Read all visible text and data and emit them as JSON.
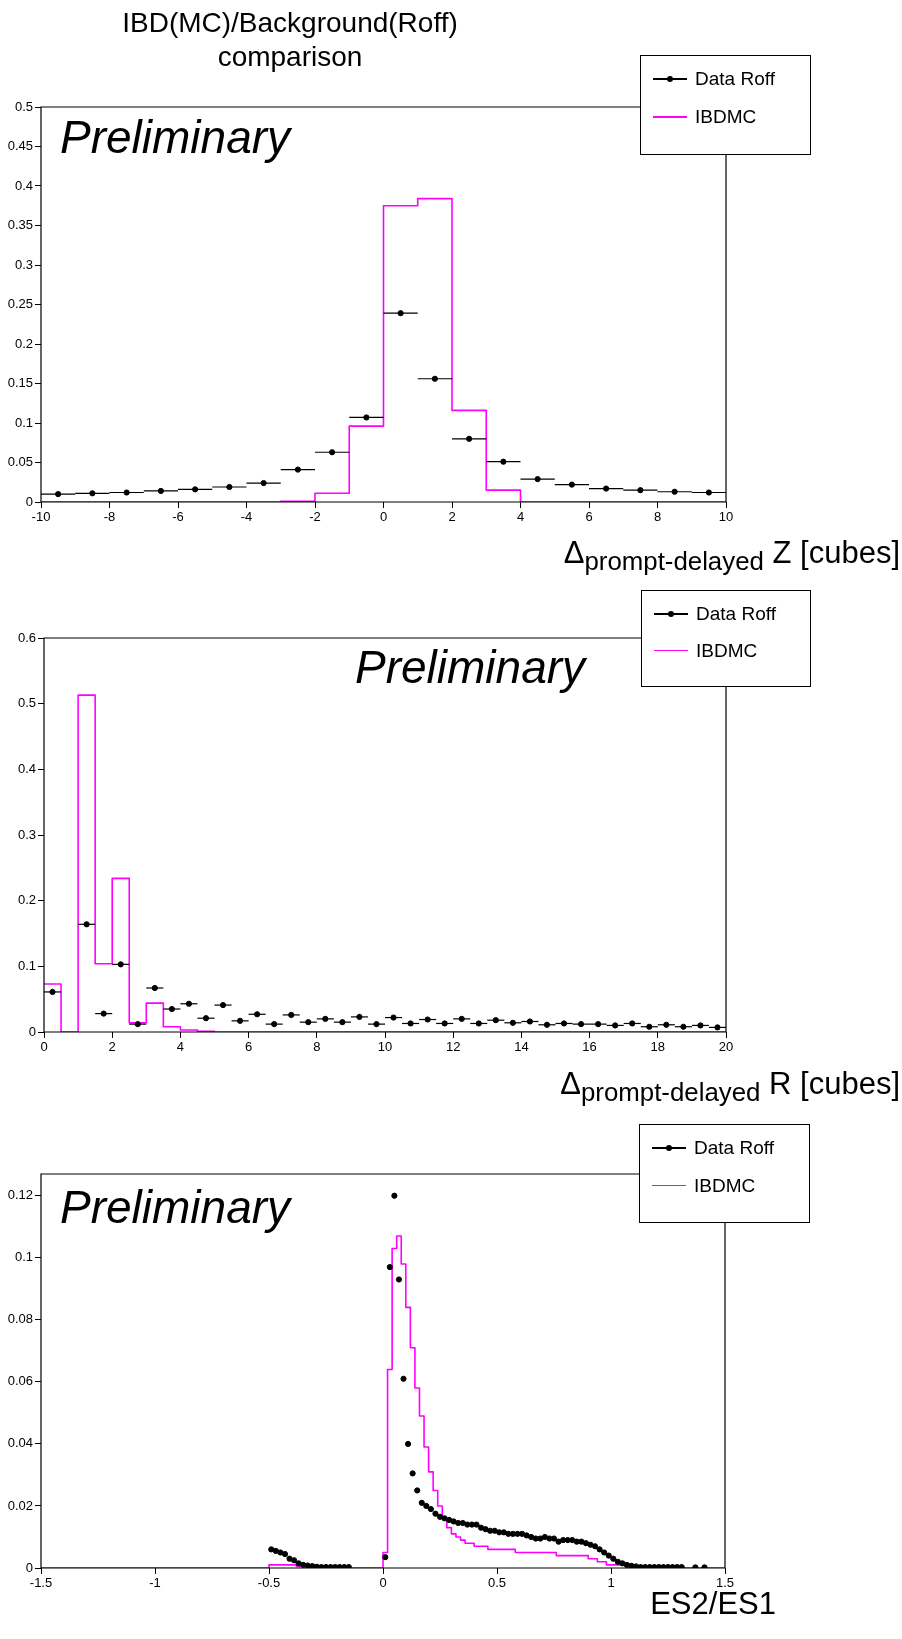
{
  "chart_data": [
    {
      "type": "histogram",
      "title": "IBD(MC)/Background(Roff) comparison",
      "xlabel": "Δ$_{prompt-delayed}$ Z [cubes]",
      "annotations": [
        "Preliminary"
      ],
      "legend": "top right",
      "xlim": [
        -10,
        10
      ],
      "ylim": [
        0,
        0.5
      ],
      "xticks": [
        -10,
        -8,
        -6,
        -4,
        -2,
        0,
        2,
        4,
        6,
        8,
        10
      ],
      "yticks": [
        0,
        0.05,
        0.1,
        0.15,
        0.2,
        0.25,
        0.3,
        0.35,
        0.4,
        0.45,
        0.5
      ],
      "series": [
        {
          "name": "IBDMC",
          "type": "histogram",
          "color": "#ff00ff",
          "bins": [
            -10,
            -9,
            -8,
            -7,
            -6,
            -5,
            -4,
            -3,
            -2,
            -1,
            0,
            1,
            2,
            3,
            4,
            5,
            6,
            7,
            8,
            9,
            10
          ],
          "values": [
            0,
            0,
            0,
            0,
            0,
            0,
            0,
            0.001,
            0.011,
            0.096,
            0.375,
            0.384,
            0.116,
            0.015,
            0,
            0,
            0,
            0,
            0,
            0
          ]
        },
        {
          "name": "Data Roff",
          "type": "scatter",
          "marker": "circle",
          "color": "#000000",
          "x": [
            -9.5,
            -8.5,
            -7.5,
            -6.5,
            -5.5,
            -4.5,
            -3.5,
            -2.5,
            -1.5,
            -0.5,
            0.5,
            1.5,
            2.5,
            3.5,
            4.5,
            5.5,
            6.5,
            7.5,
            8.5,
            9.5
          ],
          "values": [
            0.01,
            0.011,
            0.012,
            0.014,
            0.016,
            0.019,
            0.024,
            0.041,
            0.063,
            0.107,
            0.239,
            0.156,
            0.08,
            0.051,
            0.029,
            0.022,
            0.017,
            0.015,
            0.013,
            0.012
          ],
          "xerrors": [
            0.5,
            0.5,
            0.5,
            0.5,
            0.5,
            0.5,
            0.5,
            0.5,
            0.5,
            0.5,
            0.5,
            0.5,
            0.5,
            0.5,
            0.5,
            0.5,
            0.5,
            0.5,
            0.5,
            0.5
          ]
        }
      ]
    },
    {
      "type": "histogram",
      "xlabel": "Δ$_{prompt-delayed}$ R [cubes]",
      "annotations": [
        "Preliminary"
      ],
      "legend": "top right",
      "xlim": [
        0,
        20
      ],
      "ylim": [
        0,
        0.6
      ],
      "xticks": [
        0,
        2,
        4,
        6,
        8,
        10,
        12,
        14,
        16,
        18,
        20
      ],
      "yticks": [
        0,
        0.1,
        0.2,
        0.3,
        0.4,
        0.5,
        0.6
      ],
      "series": [
        {
          "name": "IBDMC",
          "type": "histogram",
          "color": "#ff00ff",
          "bins": [
            0,
            0.5,
            1,
            1.5,
            2,
            2.5,
            3,
            3.5,
            4,
            4.5,
            5,
            5.5,
            6,
            6.5,
            7,
            7.5,
            8,
            8.5,
            9,
            9.5,
            10,
            10.5,
            11,
            11.5,
            12,
            12.5,
            13,
            13.5,
            14,
            14.5,
            15,
            15.5,
            16,
            16.5,
            17,
            17.5,
            18,
            18.5,
            19,
            19.5,
            20
          ],
          "values": [
            0.073,
            0,
            0.513,
            0.104,
            0.234,
            0.014,
            0.044,
            0.008,
            0.003,
            0.001,
            0,
            0,
            0,
            0,
            0,
            0,
            0,
            0,
            0,
            0,
            0,
            0,
            0,
            0,
            0,
            0,
            0,
            0,
            0,
            0,
            0,
            0,
            0,
            0,
            0,
            0,
            0,
            0,
            0,
            0
          ]
        },
        {
          "name": "Data Roff",
          "type": "scatter",
          "marker": "circle",
          "color": "#000000",
          "x": [
            0.25,
            0.75,
            1.25,
            1.75,
            2.25,
            2.75,
            3.25,
            3.75,
            4.25,
            4.75,
            5.25,
            5.75,
            6.25,
            6.75,
            7.25,
            7.75,
            8.25,
            8.75,
            9.25,
            9.75,
            10.25,
            10.75,
            11.25,
            11.75,
            12.25,
            12.75,
            13.25,
            13.75,
            14.25,
            14.75,
            15.25,
            15.75,
            16.25,
            16.75,
            17.25,
            17.75,
            18.25,
            18.75,
            19.25,
            19.75
          ],
          "values": [
            0.061,
            null,
            0.164,
            0.028,
            0.103,
            0.012,
            0.067,
            0.035,
            0.043,
            0.021,
            0.041,
            0.017,
            0.027,
            0.012,
            0.026,
            0.015,
            0.02,
            0.015,
            0.023,
            0.012,
            0.022,
            0.013,
            0.019,
            0.013,
            0.02,
            0.013,
            0.018,
            0.014,
            0.016,
            0.011,
            0.013,
            0.012,
            0.012,
            0.01,
            0.013,
            0.008,
            0.011,
            0.008,
            0.01,
            0.007
          ],
          "xerrors": [
            0.25,
            null,
            0.25,
            0.25,
            0.25,
            0.25,
            0.25,
            0.25,
            0.25,
            0.25,
            0.25,
            0.25,
            0.25,
            0.25,
            0.25,
            0.25,
            0.25,
            0.25,
            0.25,
            0.25,
            0.25,
            0.25,
            0.25,
            0.25,
            0.25,
            0.25,
            0.25,
            0.25,
            0.25,
            0.25,
            0.25,
            0.25,
            0.25,
            0.25,
            0.25,
            0.25,
            0.25,
            0.25,
            0.25,
            0.25
          ]
        }
      ]
    },
    {
      "type": "histogram",
      "xlabel": "ES2/ES1",
      "annotations": [
        "Preliminary"
      ],
      "legend": "top right",
      "xlim": [
        -1.5,
        1.5
      ],
      "ylim": [
        0,
        0.127
      ],
      "xticks": [
        -1.5,
        -1,
        -0.5,
        0,
        0.5,
        1,
        1.5
      ],
      "yticks": [
        0,
        0.02,
        0.04,
        0.06,
        0.08,
        0.1,
        0.12
      ],
      "series": [
        {
          "name": "IBDMC",
          "type": "histogram",
          "color": "#ff00ff",
          "bins": [
            -1.5,
            -0.5,
            -0.48,
            -0.46,
            -0.44,
            -0.42,
            -0.4,
            -0.38,
            -0.36,
            -0.34,
            -0.32,
            -0.3,
            0,
            0.02,
            0.04,
            0.06,
            0.08,
            0.1,
            0.12,
            0.14,
            0.16,
            0.18,
            0.2,
            0.22,
            0.24,
            0.26,
            0.28,
            0.3,
            0.32,
            0.34,
            0.36,
            0.38,
            0.4,
            0.42,
            0.44,
            0.46,
            0.48,
            0.5,
            0.52,
            0.54,
            0.56,
            0.58,
            0.6,
            0.62,
            0.64,
            0.66,
            0.68,
            0.7,
            0.72,
            0.74,
            0.76,
            0.78,
            0.8,
            0.82,
            0.84,
            0.86,
            0.88,
            0.9,
            0.92,
            0.94,
            0.96,
            0.98,
            1,
            1.02,
            1.04,
            1.06,
            1.08,
            1.1,
            1.5
          ],
          "values": [
            0,
            0.001,
            0.001,
            0.001,
            0.001,
            0.001,
            0.001,
            0.0005,
            0.0005,
            0.0005,
            0.0005,
            0,
            0.005,
            0.064,
            0.103,
            0.107,
            0.098,
            0.084,
            0.071,
            0.058,
            0.049,
            0.039,
            0.031,
            0.025,
            0.02,
            0.016,
            0.013,
            0.011,
            0.01,
            0.009,
            0.008,
            0.008,
            0.007,
            0.007,
            0.007,
            0.006,
            0.006,
            0.006,
            0.006,
            0.006,
            0.006,
            0.005,
            0.005,
            0.005,
            0.005,
            0.005,
            0.005,
            0.005,
            0.005,
            0.005,
            0.004,
            0.004,
            0.004,
            0.004,
            0.004,
            0.004,
            0.004,
            0.003,
            0.003,
            0.002,
            0.002,
            0.001,
            0.001,
            0.001,
            0.001,
            0.0005,
            0.0005,
            0
          ]
        },
        {
          "name": "Data Roff",
          "type": "scatter",
          "marker": "circle",
          "color": "#000000",
          "x": [
            -0.49,
            -0.47,
            -0.45,
            -0.43,
            -0.41,
            -0.39,
            -0.37,
            -0.35,
            -0.33,
            -0.31,
            -0.29,
            -0.27,
            -0.25,
            -0.23,
            -0.21,
            -0.19,
            -0.17,
            -0.15,
            0.01,
            0.03,
            0.05,
            0.07,
            0.09,
            0.11,
            0.13,
            0.15,
            0.17,
            0.19,
            0.21,
            0.23,
            0.25,
            0.27,
            0.29,
            0.31,
            0.33,
            0.35,
            0.37,
            0.39,
            0.41,
            0.43,
            0.45,
            0.47,
            0.49,
            0.51,
            0.53,
            0.55,
            0.57,
            0.59,
            0.61,
            0.63,
            0.65,
            0.67,
            0.69,
            0.71,
            0.73,
            0.75,
            0.77,
            0.79,
            0.81,
            0.83,
            0.85,
            0.87,
            0.89,
            0.91,
            0.93,
            0.95,
            0.97,
            0.99,
            1.01,
            1.03,
            1.05,
            1.07,
            1.09,
            1.11,
            1.13,
            1.15,
            1.17,
            1.19,
            1.21,
            1.23,
            1.25,
            1.27,
            1.29,
            1.31,
            1.37,
            1.41
          ],
          "values": [
            0.006,
            0.0055,
            0.005,
            0.0045,
            0.003,
            0.0025,
            0.0015,
            0.001,
            0.0008,
            0.0006,
            0.0004,
            0.0003,
            0.0003,
            0.0003,
            0.0003,
            0.0003,
            0.0003,
            0.0003,
            0.0035,
            0.097,
            0.12,
            0.093,
            0.061,
            0.04,
            0.0305,
            0.025,
            0.021,
            0.02,
            0.019,
            0.0175,
            0.0165,
            0.016,
            0.0155,
            0.015,
            0.0145,
            0.0145,
            0.014,
            0.014,
            0.014,
            0.013,
            0.0125,
            0.012,
            0.012,
            0.0115,
            0.0115,
            0.011,
            0.011,
            0.011,
            0.011,
            0.0105,
            0.01,
            0.0095,
            0.0095,
            0.01,
            0.0095,
            0.0095,
            0.0085,
            0.009,
            0.009,
            0.009,
            0.0085,
            0.0085,
            0.008,
            0.0075,
            0.007,
            0.006,
            0.005,
            0.004,
            0.003,
            0.002,
            0.0015,
            0.001,
            0.0007,
            0.0005,
            0.0003,
            0.0003,
            0.0003,
            0.0003,
            0.0003,
            0.0003,
            0.0003,
            0.0003,
            0.0003,
            0.0003,
            0.0002,
            0.0002
          ]
        }
      ]
    }
  ]
}
